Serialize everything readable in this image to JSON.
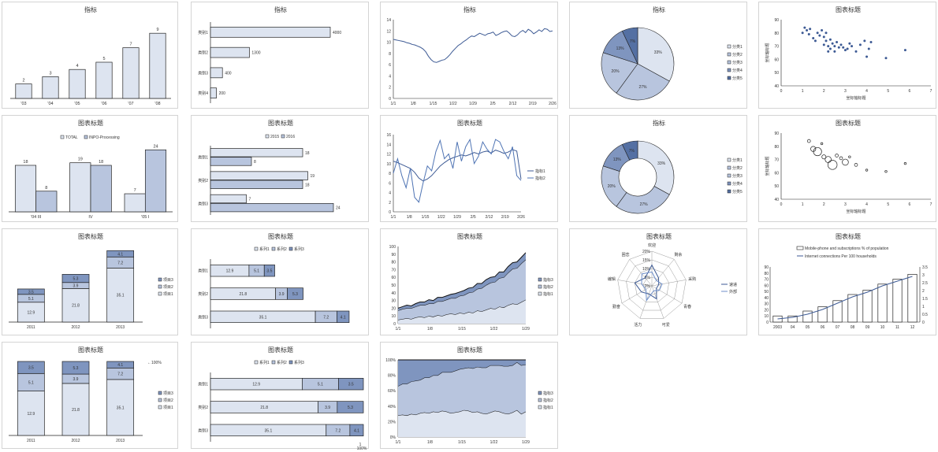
{
  "colors": {
    "pale": "#dde4f0",
    "mid": "#b8c5de",
    "dark": "#7f95bf",
    "darker": "#5470a3",
    "line": "#3d5a94",
    "stroke": "#222222"
  },
  "chart_data": [
    {
      "id": "c1",
      "type": "bar",
      "title": "指标",
      "categories": [
        "'03",
        "'04",
        "'05",
        "'06",
        "'07",
        "'08"
      ],
      "values": [
        2,
        3,
        4,
        5,
        7,
        9
      ]
    },
    {
      "id": "c2",
      "type": "bar",
      "orientation": "horizontal",
      "title": "指标",
      "categories": [
        "类别1",
        "类别2",
        "类别3",
        "类别4"
      ],
      "values": [
        4000,
        1300,
        400,
        200
      ]
    },
    {
      "id": "c3",
      "type": "line",
      "title": "指标",
      "x_ticks": [
        "1/1",
        "1/8",
        "1/15",
        "1/22",
        "1/29",
        "2/5",
        "2/12",
        "2/19",
        "2/26"
      ],
      "ylim": [
        0,
        14
      ],
      "y_ticks": [
        "0",
        "2",
        "4",
        "6",
        "8",
        "10",
        "12",
        "14"
      ],
      "values": [
        10.5,
        10.4,
        10.3,
        10.2,
        10.1,
        9.9,
        9.8,
        9.6,
        9.5,
        9.3,
        9.1,
        8.8,
        8.3,
        7.5,
        6.9,
        6.5,
        6.4,
        6.6,
        6.8,
        6.9,
        7.3,
        7.8,
        8.4,
        8.9,
        9.4,
        9.7,
        10.1,
        10.4,
        10.8,
        11.1,
        11.0,
        11.3,
        11.6,
        11.4,
        11.2,
        11.5,
        11.6,
        11.8,
        11.2,
        11.4,
        11.7,
        11.9,
        12.0,
        11.6,
        11.1,
        11.0,
        11.3,
        11.8,
        12.1,
        11.7,
        12.3,
        12.0,
        11.5,
        11.8,
        12.2,
        11.9,
        12.4,
        12.3,
        11.9,
        12.0
      ]
    },
    {
      "id": "c4",
      "type": "pie",
      "title": "指标",
      "labels": [
        "分类1",
        "分类2",
        "分类3",
        "分类4",
        "分类5"
      ],
      "values": [
        33,
        27,
        20,
        13,
        7
      ],
      "value_labels": [
        "33%",
        "27%",
        "20%",
        "13%",
        "7%"
      ]
    },
    {
      "id": "c5",
      "type": "scatter",
      "title": "图表标题",
      "xlabel": "坐标轴标题",
      "ylabel": "坐标轴标题",
      "xlim": [
        0,
        7
      ],
      "ylim": [
        40,
        90
      ],
      "x_ticks": [
        "0",
        "1",
        "2",
        "3",
        "4",
        "5",
        "6",
        "7"
      ],
      "y_ticks": [
        "40",
        "50",
        "60",
        "70",
        "80",
        "90"
      ],
      "points": [
        [
          1.0,
          80
        ],
        [
          1.1,
          84
        ],
        [
          1.2,
          82
        ],
        [
          1.3,
          79
        ],
        [
          1.35,
          83
        ],
        [
          1.5,
          76
        ],
        [
          1.6,
          74
        ],
        [
          1.7,
          80
        ],
        [
          1.8,
          78
        ],
        [
          1.9,
          82
        ],
        [
          2.0,
          77
        ],
        [
          2.0,
          71
        ],
        [
          2.1,
          80
        ],
        [
          2.1,
          74
        ],
        [
          2.2,
          70
        ],
        [
          2.2,
          66
        ],
        [
          2.3,
          75
        ],
        [
          2.3,
          68
        ],
        [
          2.4,
          72
        ],
        [
          2.5,
          70
        ],
        [
          2.5,
          66
        ],
        [
          2.6,
          73
        ],
        [
          2.7,
          69
        ],
        [
          2.8,
          71
        ],
        [
          2.9,
          69
        ],
        [
          3.0,
          67
        ],
        [
          3.1,
          68
        ],
        [
          3.2,
          72
        ],
        [
          3.3,
          70
        ],
        [
          3.5,
          66
        ],
        [
          3.7,
          71
        ],
        [
          3.9,
          74
        ],
        [
          4.0,
          62
        ],
        [
          4.1,
          68
        ],
        [
          4.2,
          73
        ],
        [
          4.9,
          61
        ],
        [
          5.8,
          67
        ]
      ]
    },
    {
      "id": "c6",
      "type": "bar",
      "title": "图表标题",
      "categories": [
        "'04 III",
        "IV",
        "'05 I"
      ],
      "series": [
        {
          "name": "TOTAL",
          "values": [
            18,
            19,
            7
          ]
        },
        {
          "name": "INPO-Processing",
          "values": [
            8,
            18,
            24
          ]
        }
      ]
    },
    {
      "id": "c7",
      "type": "bar",
      "orientation": "horizontal",
      "title": "图表标题",
      "categories": [
        "类别1",
        "类别2",
        "类别3"
      ],
      "series": [
        {
          "name": "2015",
          "values": [
            18,
            19,
            7
          ]
        },
        {
          "name": "2016",
          "values": [
            8,
            18,
            24
          ]
        }
      ]
    },
    {
      "id": "c8",
      "type": "line",
      "title": "图表标题",
      "x_ticks": [
        "1/1",
        "1/8",
        "1/15",
        "1/22",
        "1/29",
        "2/5",
        "2/12",
        "2/19",
        "2/26"
      ],
      "ylim": [
        0,
        16
      ],
      "y_ticks": [
        "0",
        "2",
        "4",
        "6",
        "8",
        "10",
        "12",
        "14",
        "16"
      ],
      "series": [
        {
          "name": "指标1",
          "values": [
            10.5,
            10.2,
            9.8,
            9.4,
            9.0,
            8.2,
            7.0,
            6.4,
            6.8,
            7.5,
            8.5,
            9.5,
            10.2,
            10.8,
            11.2,
            11.5,
            11.8,
            11.6,
            11.9,
            12.3,
            12.0,
            12.4,
            12.6,
            12.2,
            12.8,
            12.5,
            12.1,
            12.4,
            12.9,
            12.6,
            6.8
          ]
        },
        {
          "name": "指标2",
          "values": [
            8.0,
            11.0,
            7.5,
            5.0,
            9.0,
            3.0,
            2.0,
            6.0,
            9.5,
            8.5,
            12.5,
            14.8,
            11.0,
            12.0,
            9.0,
            14.5,
            10.5,
            13.5,
            15.0,
            10.0,
            11.5,
            14.5,
            13.0,
            12.0,
            15.0,
            14.5,
            12.5,
            11.0,
            13.5,
            7.5,
            6.5
          ]
        }
      ]
    },
    {
      "id": "c9",
      "type": "pie",
      "title": "指标",
      "labels": [
        "分类1",
        "分类2",
        "分类3",
        "分类4",
        "分类5"
      ],
      "values": [
        33,
        27,
        20,
        13,
        7
      ],
      "value_labels": [
        "33%",
        "27%",
        "20%",
        "13%",
        "7%"
      ],
      "donut": true
    },
    {
      "id": "c10",
      "type": "scatter",
      "title": "图表标题",
      "xlabel": "坐标轴标题",
      "ylabel": "坐标轴标题",
      "xlim": [
        0,
        7
      ],
      "ylim": [
        40,
        90
      ],
      "x_ticks": [
        "0",
        "1",
        "2",
        "3",
        "4",
        "5",
        "6",
        "7"
      ],
      "y_ticks": [
        "40",
        "50",
        "60",
        "70",
        "80",
        "90"
      ],
      "points": [
        [
          1.3,
          84,
          1.5
        ],
        [
          1.5,
          78,
          2.5
        ],
        [
          1.7,
          76,
          4
        ],
        [
          2.0,
          72,
          2
        ],
        [
          2.2,
          70,
          3
        ],
        [
          2.4,
          66,
          4.5
        ],
        [
          2.6,
          73,
          1.5
        ],
        [
          3.0,
          68,
          3
        ],
        [
          3.5,
          66,
          1.5
        ],
        [
          4.0,
          62,
          1
        ],
        [
          4.9,
          61,
          1
        ],
        [
          5.8,
          67,
          1
        ],
        [
          2.8,
          71,
          1.5
        ],
        [
          1.9,
          82,
          1
        ],
        [
          3.2,
          72,
          1
        ]
      ]
    },
    {
      "id": "c11",
      "type": "bar",
      "stacked": true,
      "title": "图表标题",
      "categories": [
        "2011",
        "2012",
        "2013"
      ],
      "series": [
        {
          "name": "项目1",
          "values": [
            12.9,
            21.8,
            35.1
          ]
        },
        {
          "name": "项目2",
          "values": [
            5.1,
            3.9,
            7.2
          ]
        },
        {
          "name": "项目3",
          "values": [
            3.5,
            5.3,
            4.1
          ]
        }
      ]
    },
    {
      "id": "c12",
      "type": "bar",
      "stacked": true,
      "orientation": "horizontal",
      "title": "图表标题",
      "categories": [
        "类别1",
        "类别2",
        "类别3"
      ],
      "series": [
        {
          "name": "系列1",
          "values": [
            12.9,
            21.8,
            35.1
          ]
        },
        {
          "name": "系列2",
          "values": [
            5.1,
            3.9,
            7.2
          ]
        },
        {
          "name": "系列3",
          "values": [
            3.5,
            5.3,
            4.1
          ]
        }
      ]
    },
    {
      "id": "c13",
      "type": "area",
      "stacked": true,
      "title": "图表标题",
      "x_ticks": [
        "1/1",
        "1/8",
        "1/15",
        "1/22",
        "1/29"
      ],
      "ylim": [
        0,
        100
      ],
      "y_ticks": [
        "0",
        "10",
        "20",
        "30",
        "40",
        "50",
        "60",
        "70",
        "80",
        "90",
        "100"
      ],
      "series": [
        {
          "name": "指标1",
          "values": [
            5,
            6,
            7,
            6,
            8,
            9,
            8,
            10,
            9,
            11,
            10,
            12,
            13,
            12,
            14,
            13,
            15,
            14,
            17,
            16,
            18,
            20,
            19,
            22,
            21,
            24,
            26,
            25,
            28,
            31
          ]
        },
        {
          "name": "指标2",
          "values": [
            12,
            13,
            13,
            14,
            14,
            15,
            16,
            16,
            17,
            18,
            19,
            19,
            20,
            21,
            22,
            24,
            25,
            27,
            28,
            30,
            32,
            33,
            35,
            37,
            39,
            42,
            45,
            47,
            50,
            52
          ]
        },
        {
          "name": "指标3",
          "values": [
            3,
            3,
            4,
            3,
            4,
            4,
            4,
            5,
            4,
            5,
            5,
            5,
            5,
            6,
            5,
            6,
            6,
            6,
            7,
            6,
            7,
            7,
            7,
            8,
            7,
            8,
            8,
            8,
            8,
            9
          ]
        }
      ]
    },
    {
      "id": "c14",
      "type": "radar",
      "title": "图表标题",
      "axes": [
        "欢迎",
        "剩余",
        "采购",
        "青春",
        "可爱",
        "活力",
        "勤奋",
        "编辑",
        "困恋"
      ],
      "r_ticks": [
        "0%",
        "5%",
        "10%",
        "15%",
        "20%"
      ],
      "rlim": [
        0,
        20
      ],
      "series": [
        {
          "name": "速递",
          "values": [
            12,
            6,
            4,
            3,
            8,
            5,
            7,
            10,
            6
          ]
        },
        {
          "name": "外部",
          "values": [
            8,
            4,
            6,
            5,
            3,
            9,
            4,
            6,
            9
          ]
        }
      ]
    },
    {
      "id": "c15",
      "type": "bar",
      "title": "图表标题",
      "categories": [
        "2003",
        "04",
        "05",
        "06",
        "07",
        "08",
        "09",
        "10",
        "11",
        "12"
      ],
      "y_ticks": [
        "0",
        "10",
        "20",
        "30",
        "40",
        "50",
        "60",
        "70",
        "80",
        "90"
      ],
      "y2_ticks": [
        "0",
        "0.5",
        "1",
        "1.5",
        "2",
        "2.5",
        "3",
        "3.5"
      ],
      "series": [
        {
          "name": "Mobile-phone and subscriptions % of population",
          "values": [
            10,
            10,
            18,
            25,
            35,
            45,
            52,
            62,
            70,
            78
          ]
        },
        {
          "name": "Internet connections Per 100 households",
          "values": [
            0.2,
            0.3,
            0.5,
            0.8,
            1.2,
            1.6,
            1.9,
            2.3,
            2.6,
            2.9
          ]
        }
      ]
    },
    {
      "id": "c16",
      "type": "bar",
      "stacked": true,
      "title": "图表标题",
      "categories": [
        "2011",
        "2012",
        "2013"
      ],
      "series": [
        {
          "name": "项目1",
          "values": [
            12.9,
            21.8,
            35.1
          ]
        },
        {
          "name": "项目2",
          "values": [
            5.1,
            3.9,
            7.2
          ]
        },
        {
          "name": "项目3",
          "values": [
            3.5,
            5.3,
            4.1
          ]
        }
      ],
      "annotation": "←100%"
    },
    {
      "id": "c17",
      "type": "bar",
      "stacked": true,
      "orientation": "horizontal",
      "title": "图表标题",
      "categories": [
        "类别1",
        "类别2",
        "类别3"
      ],
      "series": [
        {
          "name": "系列1",
          "values": [
            12.9,
            21.8,
            35.1
          ]
        },
        {
          "name": "系列2",
          "values": [
            5.1,
            3.9,
            7.2
          ]
        },
        {
          "name": "系列3",
          "values": [
            3.5,
            5.3,
            4.1
          ]
        }
      ],
      "end_label": "1\n100%"
    },
    {
      "id": "c18",
      "type": "area",
      "stacked": true,
      "percent": true,
      "title": "图表标题",
      "x_ticks": [
        "1/1",
        "1/8",
        "1/15",
        "1/22",
        "1/29"
      ],
      "y_ticks": [
        "0%",
        "20%",
        "40%",
        "60%",
        "80%",
        "100%"
      ],
      "series": [
        {
          "name": "指标1",
          "values": [
            28,
            29,
            28,
            30,
            29,
            31,
            32,
            31,
            33,
            32,
            34,
            33,
            31,
            32,
            33,
            35,
            34,
            32,
            33,
            31,
            30,
            32,
            34,
            33,
            31,
            30,
            32,
            35,
            30,
            33
          ]
        },
        {
          "name": "指标2",
          "values": [
            38,
            40,
            41,
            42,
            44,
            43,
            45,
            46,
            47,
            48,
            50,
            51,
            53,
            54,
            55,
            54,
            56,
            57,
            58,
            59,
            60,
            61,
            59,
            60,
            61,
            62,
            61,
            62,
            63,
            61
          ]
        },
        {
          "name": "指标3",
          "values": [
            34,
            31,
            31,
            28,
            27,
            26,
            23,
            23,
            20,
            20,
            16,
            16,
            16,
            14,
            12,
            11,
            10,
            11,
            9,
            10,
            10,
            7,
            7,
            7,
            8,
            8,
            7,
            3,
            7,
            6
          ]
        }
      ]
    }
  ]
}
